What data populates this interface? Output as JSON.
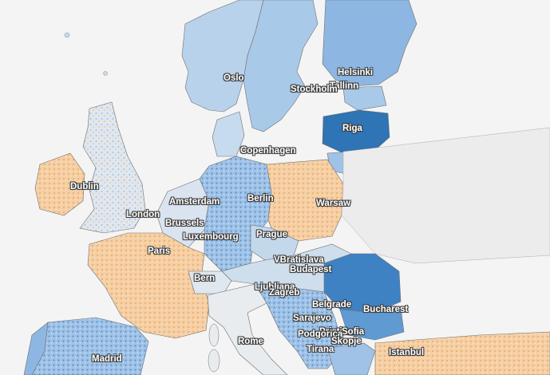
{
  "colors": {
    "sea": "#f4f4f4",
    "border": "#6f6f6f",
    "blue_dark": "#2f74b5",
    "blue_mid": "#5f9ad3",
    "blue_light": "#a9c9e9",
    "neutral": "#e4e9ef",
    "orange_light": "#f6d0a6",
    "orange_mid": "#f0a55c",
    "orange_dark": "#e07a22"
  },
  "cities": {
    "helsinki": "Helsinki",
    "tallinn": "Tallinn",
    "oslo": "Oslo",
    "stockholm": "Stockholm",
    "riga": "Riga",
    "copenhagen": "Copenhagen",
    "dublin": "Dublin",
    "amsterdam": "Amsterdam",
    "berlin": "Berlin",
    "warsaw": "Warsaw",
    "london": "London",
    "brussels": "Brussels",
    "luxembourg": "Luxembourg",
    "prague": "Prague",
    "paris": "Paris",
    "vienna_bratislava": "VBratislava",
    "budapest": "Budapest",
    "bern": "Bern",
    "ljubljana_zagreb": "Ljubljana",
    "zagreb": "Zagreb",
    "belgrade": "Belgrade",
    "bucharest": "Bucharest",
    "sarajevo": "Sarajevo",
    "pristina": "Pristina",
    "podgorica": "Podgorica",
    "skopje": "Skopje",
    "tirana": "Tirana",
    "sofia": "Sofia",
    "rome": "Rome",
    "madrid": "Madrid",
    "istanbul": "Istanbul"
  }
}
